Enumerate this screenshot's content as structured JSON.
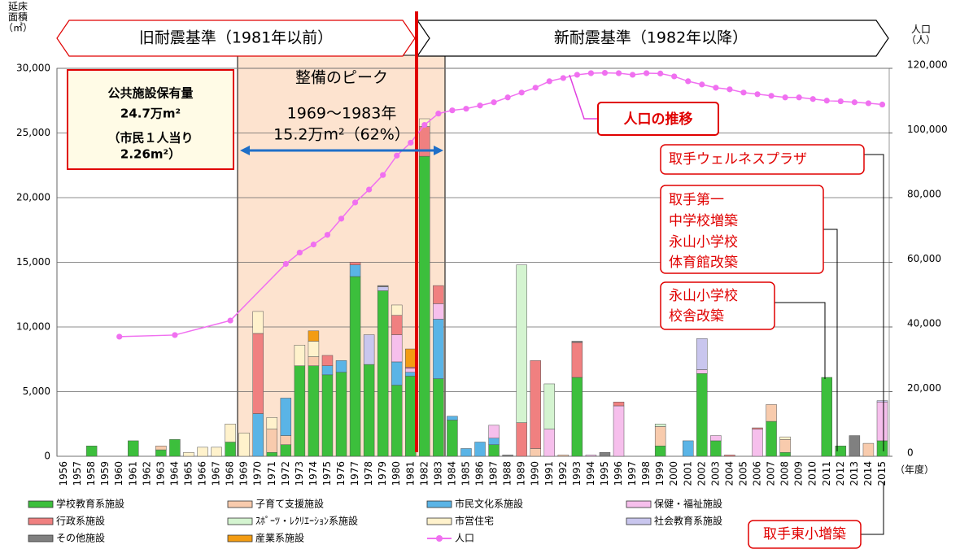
{
  "chart_data": {
    "type": "bar",
    "y_axis_label": "延床\n面積\n（㎡）",
    "y2_axis_label": "人口\n（人）",
    "x_axis_label": "（年度）",
    "categories": [
      "1956",
      "1957",
      "1958",
      "1959",
      "1960",
      "1961",
      "1962",
      "1963",
      "1964",
      "1965",
      "1966",
      "1967",
      "1968",
      "1969",
      "1970",
      "1971",
      "1972",
      "1973",
      "1974",
      "1975",
      "1976",
      "1977",
      "1978",
      "1979",
      "1980",
      "1981",
      "1982",
      "1983",
      "1984",
      "1985",
      "1986",
      "1987",
      "1988",
      "1989",
      "1990",
      "1991",
      "1992",
      "1993",
      "1994",
      "1995",
      "1996",
      "1997",
      "1998",
      "1999",
      "2000",
      "2001",
      "2002",
      "2003",
      "2004",
      "2005",
      "2006",
      "2007",
      "2008",
      "2009",
      "2010",
      "2011",
      "2012",
      "2013",
      "2014",
      "2015"
    ],
    "ylim": [
      0,
      30000
    ],
    "yticks": [
      0,
      {
        "value": 5000,
        "label": "5,000"
      },
      {
        "value": 10000,
        "label": "10,000"
      },
      {
        "value": 15000,
        "label": "15,000"
      },
      {
        "value": 20000,
        "label": "20,000"
      },
      {
        "value": 25000,
        "label": "25,000"
      },
      {
        "value": 30000,
        "label": "30,000"
      }
    ],
    "y2lim": [
      0,
      120000
    ],
    "y2ticks": [
      0,
      {
        "value": 20000,
        "label": "20,000"
      },
      {
        "value": 40000,
        "label": "40,000"
      },
      {
        "value": 60000,
        "label": "60,000"
      },
      {
        "value": 80000,
        "label": "80,000"
      },
      {
        "value": 100000,
        "label": "100,000"
      },
      {
        "value": 120000,
        "label": "120,000"
      }
    ],
    "grid": true,
    "stacked": true,
    "series": [
      {
        "name": "学校教育系施設",
        "color": "#3cbf3c",
        "values": [
          0,
          0,
          800,
          0,
          0,
          1200,
          0,
          500,
          1300,
          0,
          0,
          0,
          1100,
          0,
          0,
          300,
          900,
          7000,
          7000,
          6300,
          6500,
          13900,
          7100,
          12800,
          5500,
          6200,
          23200,
          6000,
          2800,
          0,
          0,
          900,
          0,
          0,
          0,
          0,
          0,
          6100,
          0,
          0,
          0,
          0,
          0,
          800,
          0,
          0,
          6400,
          1200,
          0,
          0,
          0,
          2700,
          300,
          0,
          0,
          6100,
          800,
          0,
          0,
          1200
        ]
      },
      {
        "name": "子育て支援施設",
        "color": "#f8cbad",
        "values": [
          0,
          0,
          0,
          0,
          0,
          0,
          0,
          300,
          0,
          0,
          0,
          0,
          0,
          0,
          0,
          1800,
          700,
          0,
          700,
          0,
          0,
          0,
          0,
          0,
          0,
          0,
          0,
          0,
          0,
          0,
          0,
          0,
          0,
          0,
          600,
          0,
          100,
          0,
          0,
          0,
          0,
          0,
          0,
          1500,
          0,
          0,
          0,
          0,
          0,
          0,
          0,
          1300,
          1000,
          0,
          0,
          0,
          0,
          0,
          1000,
          0
        ]
      },
      {
        "name": "市民文化系施設",
        "color": "#5ab4e6",
        "values": [
          0,
          0,
          0,
          0,
          0,
          0,
          0,
          0,
          0,
          0,
          0,
          0,
          0,
          0,
          3300,
          0,
          2900,
          0,
          0,
          700,
          900,
          900,
          0,
          0,
          1800,
          300,
          0,
          4600,
          300,
          600,
          1100,
          500,
          0,
          0,
          0,
          0,
          0,
          0,
          0,
          0,
          0,
          0,
          0,
          0,
          0,
          1200,
          0,
          0,
          0,
          0,
          0,
          0,
          0,
          0,
          0,
          0,
          0,
          0,
          0,
          0
        ]
      },
      {
        "name": "保健・福祉施設",
        "color": "#f6bfec",
        "values": [
          0,
          0,
          0,
          0,
          0,
          0,
          0,
          0,
          0,
          0,
          0,
          0,
          0,
          0,
          0,
          0,
          0,
          0,
          0,
          0,
          0,
          0,
          0,
          0,
          2100,
          300,
          0,
          1200,
          0,
          0,
          0,
          1000,
          0,
          0,
          0,
          2100,
          0,
          0,
          100,
          0,
          3900,
          0,
          0,
          0,
          0,
          0,
          300,
          400,
          0,
          0,
          2100,
          0,
          0,
          0,
          0,
          0,
          0,
          0,
          0,
          3000
        ]
      },
      {
        "name": "行政系施設",
        "color": "#f08080",
        "values": [
          0,
          0,
          0,
          0,
          0,
          0,
          0,
          0,
          0,
          0,
          0,
          0,
          0,
          0,
          6200,
          0,
          0,
          0,
          0,
          800,
          0,
          200,
          0,
          0,
          1500,
          100,
          2300,
          1400,
          0,
          0,
          0,
          0,
          0,
          2600,
          6800,
          0,
          0,
          2700,
          0,
          0,
          300,
          0,
          0,
          0,
          0,
          0,
          0,
          0,
          100,
          0,
          100,
          0,
          0,
          0,
          0,
          0,
          0,
          0,
          0,
          0
        ]
      },
      {
        "name": "ｽﾎﾟｰﾂ・ﾚｸﾘｴｰｼｮﾝ系施設",
        "color": "#d4f4d0",
        "values": [
          0,
          0,
          0,
          0,
          0,
          0,
          0,
          0,
          0,
          0,
          0,
          0,
          0,
          0,
          0,
          0,
          0,
          0,
          0,
          0,
          0,
          0,
          0,
          0,
          0,
          0,
          0,
          0,
          0,
          0,
          0,
          0,
          0,
          12200,
          0,
          3500,
          0,
          0,
          0,
          0,
          0,
          0,
          0,
          200,
          0,
          0,
          0,
          0,
          0,
          0,
          0,
          0,
          0,
          0,
          0,
          0,
          0,
          0,
          0,
          0
        ]
      },
      {
        "name": "市営住宅",
        "color": "#fff2cc",
        "values": [
          0,
          0,
          0,
          0,
          0,
          0,
          0,
          0,
          0,
          300,
          700,
          700,
          1400,
          1800,
          1700,
          900,
          0,
          1600,
          1200,
          0,
          0,
          0,
          0,
          0,
          800,
          0,
          600,
          0,
          0,
          0,
          0,
          0,
          0,
          0,
          0,
          0,
          0,
          0,
          0,
          0,
          0,
          0,
          0,
          0,
          0,
          0,
          0,
          0,
          0,
          0,
          0,
          0,
          200,
          0,
          0,
          0,
          0,
          0,
          0,
          0
        ]
      },
      {
        "name": "社会教育系施設",
        "color": "#c9c6ee",
        "values": [
          0,
          0,
          0,
          0,
          0,
          0,
          0,
          0,
          0,
          0,
          0,
          0,
          0,
          0,
          0,
          0,
          0,
          0,
          0,
          0,
          0,
          0,
          2300,
          300,
          0,
          0,
          0,
          0,
          0,
          0,
          0,
          0,
          0,
          0,
          0,
          0,
          0,
          0,
          0,
          0,
          0,
          0,
          0,
          0,
          0,
          0,
          2400,
          0,
          0,
          0,
          0,
          0,
          0,
          0,
          0,
          0,
          0,
          0,
          0,
          100
        ]
      },
      {
        "name": "その他施設",
        "color": "#808080",
        "values": [
          0,
          0,
          0,
          0,
          0,
          0,
          0,
          0,
          0,
          0,
          0,
          0,
          0,
          0,
          0,
          0,
          0,
          0,
          0,
          0,
          0,
          0,
          0,
          100,
          0,
          0,
          0,
          0,
          0,
          0,
          0,
          0,
          100,
          0,
          0,
          0,
          0,
          100,
          0,
          300,
          0,
          0,
          0,
          0,
          0,
          0,
          0,
          0,
          0,
          0,
          0,
          0,
          0,
          0,
          0,
          0,
          0,
          1600,
          0,
          0
        ]
      },
      {
        "name": "産業系施設",
        "color": "#f39c12",
        "values": [
          0,
          0,
          0,
          0,
          0,
          0,
          0,
          0,
          0,
          0,
          0,
          0,
          0,
          0,
          0,
          0,
          0,
          0,
          800,
          0,
          0,
          0,
          0,
          0,
          0,
          1400,
          0,
          0,
          0,
          0,
          0,
          0,
          0,
          0,
          0,
          0,
          0,
          0,
          0,
          0,
          0,
          0,
          0,
          0,
          0,
          0,
          0,
          0,
          0,
          0,
          0,
          0,
          0,
          0,
          0,
          0,
          0,
          0,
          0,
          0
        ]
      },
      {
        "name": "人口",
        "color": "#f070f0",
        "type": "line",
        "axis": "y2",
        "x": [
          1960,
          1964,
          1968,
          1972,
          1973,
          1974,
          1975,
          1976,
          1977,
          1978,
          1979,
          1980,
          1981,
          1982,
          1983,
          1984,
          1985,
          1986,
          1987,
          1988,
          1989,
          1990,
          1991,
          1992,
          1993,
          1994,
          1995,
          1996,
          1997,
          1998,
          1999,
          2000,
          2001,
          2002,
          2003,
          2004,
          2005,
          2006,
          2007,
          2008,
          2009,
          2010,
          2011,
          2012,
          2013,
          2014,
          2015
        ],
        "values": [
          37000,
          37500,
          42000,
          59500,
          63000,
          65500,
          68500,
          73500,
          78500,
          82500,
          87000,
          93000,
          97000,
          102500,
          106000,
          107000,
          107500,
          108500,
          109500,
          111000,
          112500,
          114000,
          116000,
          117000,
          118000,
          118500,
          118600,
          118500,
          118000,
          118500,
          118400,
          117500,
          116000,
          115000,
          114000,
          113500,
          112500,
          112000,
          111500,
          111000,
          111000,
          110500,
          110000,
          109800,
          109500,
          109200,
          108800
        ]
      }
    ],
    "annotations": {
      "old_standard": "旧耐震基準（1981年以前）",
      "new_standard": "新耐震基準（1982年以降）",
      "peak_title": "整備のピーク",
      "peak_years": "1969～1983年",
      "peak_area": "15.2万m²（62%）",
      "holdings": [
        "公共施設保有量",
        "24.7万m²",
        "（市民１人当り",
        "2.26m²）"
      ],
      "population_trend": "人口の推移",
      "wellness": "取手ウェルネスプラザ",
      "daiichi": [
        "取手第一",
        "中学校増築",
        "永山小学校",
        "体育館改築"
      ],
      "nagayama": [
        "永山小学校",
        "校舎改築"
      ],
      "higashi": "取手東小増築"
    }
  }
}
